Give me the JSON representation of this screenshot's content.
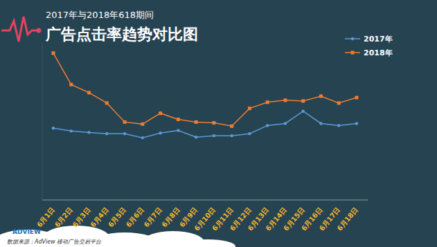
{
  "chart_data": {
    "type": "line",
    "title": "广告点击率趋势对比图",
    "subtitle": "2017年与2018年618期间",
    "categories": [
      "6月1日",
      "6月2日",
      "6月3日",
      "6月4日",
      "6月5日",
      "6月6日",
      "6月7日",
      "6月8日",
      "6月9日",
      "6月10日",
      "6月11日",
      "6月12日",
      "6月13日",
      "6月14日",
      "6月15日",
      "6月16日",
      "6月17日",
      "6月18日"
    ],
    "series": [
      {
        "name": "2017年",
        "color": "#5b9bd5",
        "marker": "circle",
        "values": [
          45.7,
          43.9,
          43.0,
          42.2,
          42.2,
          39.6,
          42.6,
          44.3,
          40.0,
          40.9,
          40.9,
          42.2,
          47.4,
          48.7,
          56.5,
          48.7,
          47.4,
          48.7
        ]
      },
      {
        "name": "2018年",
        "color": "#ed7d31",
        "marker": "square",
        "values": [
          93.5,
          73.5,
          68.3,
          61.7,
          49.6,
          48.3,
          55.2,
          51.3,
          49.6,
          49.1,
          47.0,
          58.3,
          62.2,
          63.5,
          63.0,
          66.1,
          61.7,
          65.2
        ]
      }
    ],
    "ylim": [
      0,
      100
    ],
    "tick_labels": "x",
    "legend": "top right",
    "grid": false,
    "annotations": [
      "数据来源：AdView 移动广告交易平台",
      "ADVIEW"
    ]
  }
}
